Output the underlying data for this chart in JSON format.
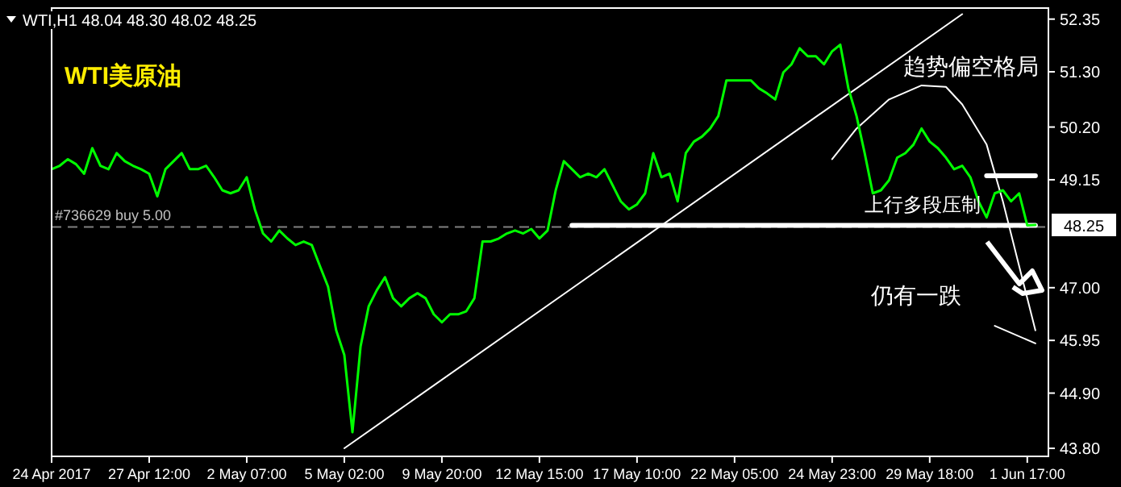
{
  "chart_data": {
    "type": "line",
    "title": "WTI,H1 48.04 48.30 48.02 48.25",
    "annotations": [
      "WTI美原油",
      "趋势偏空格局",
      "上行多段压制",
      "仍有一跌",
      {
        "text": "48.25",
        "y": 48.25
      }
    ],
    "categories": [
      "24 Apr 2017",
      null,
      null,
      null,
      null,
      null,
      null,
      null,
      null,
      null,
      null,
      null,
      "27 Apr 12:00",
      null,
      null,
      null,
      null,
      null,
      null,
      null,
      null,
      null,
      null,
      null,
      "2 May 07:00",
      null,
      null,
      null,
      null,
      null,
      null,
      null,
      null,
      null,
      null,
      null,
      "5 May 02:00",
      null,
      null,
      null,
      null,
      null,
      null,
      null,
      null,
      null,
      null,
      null,
      "9 May 20:00",
      null,
      null,
      null,
      null,
      null,
      null,
      null,
      null,
      null,
      null,
      null,
      "12 May 15:00",
      null,
      null,
      null,
      null,
      null,
      null,
      null,
      null,
      null,
      null,
      null,
      "17 May 10:00",
      null,
      null,
      null,
      null,
      null,
      null,
      null,
      null,
      null,
      null,
      null,
      "22 May 05:00",
      null,
      null,
      null,
      null,
      null,
      null,
      null,
      null,
      null,
      null,
      null,
      "24 May 23:00",
      null,
      null,
      null,
      null,
      null,
      null,
      null,
      null,
      null,
      null,
      null,
      "29 May 18:00",
      null,
      null,
      null,
      null,
      null,
      null,
      null,
      null,
      null,
      null,
      null,
      "1 Jun 17:00",
      null
    ],
    "ylim": [
      43.64,
      52.57
    ],
    "yticks": [
      {
        "value": 52.35,
        "label": "52.35"
      },
      {
        "value": 51.3,
        "label": "51.30"
      },
      {
        "value": 50.2,
        "label": "50.20"
      },
      {
        "value": 49.15,
        "label": "49.15"
      },
      {
        "value": 47,
        "label": "47.00"
      },
      {
        "value": 45.95,
        "label": "45.95"
      },
      {
        "value": 44.9,
        "label": "44.90"
      },
      {
        "value": 43.8,
        "label": "43.80"
      }
    ],
    "ref_lines": [
      {
        "axis": "y",
        "value": 48.21,
        "label": "#736629 buy 5.00",
        "color": "#808080",
        "line_style": "dashed"
      }
    ],
    "series": [
      {
        "color": "#00ff00",
        "values": [
          49.36,
          49.43,
          49.56,
          49.46,
          49.27,
          49.78,
          49.43,
          49.36,
          49.68,
          49.52,
          49.43,
          49.36,
          49.27,
          48.82,
          49.36,
          49.52,
          49.68,
          49.36,
          49.36,
          49.43,
          49.2,
          48.94,
          48.88,
          48.94,
          49.2,
          48.56,
          48.08,
          47.92,
          48.14,
          47.98,
          47.85,
          47.92,
          47.85,
          47.43,
          47.02,
          46.15,
          45.66,
          44.12,
          45.83,
          46.63,
          46.95,
          47.21,
          46.79,
          46.63,
          46.79,
          46.89,
          46.79,
          46.47,
          46.31,
          46.47,
          46.47,
          46.53,
          46.79,
          47.92,
          47.92,
          47.98,
          48.08,
          48.14,
          48.08,
          48.17,
          47.98,
          48.14,
          48.94,
          49.52,
          49.36,
          49.2,
          49.27,
          49.2,
          49.36,
          49.04,
          48.72,
          48.56,
          48.66,
          48.88,
          49.68,
          49.2,
          49.27,
          48.72,
          49.68,
          49.91,
          50.01,
          50.17,
          50.42,
          51.13,
          51.13,
          51.13,
          51.13,
          50.97,
          50.87,
          50.75,
          51.29,
          51.45,
          51.77,
          51.61,
          51.61,
          51.45,
          51.71,
          51.84,
          50.97,
          50.42,
          49.68,
          48.88,
          48.94,
          49.14,
          49.59,
          49.68,
          49.85,
          50.17,
          49.91,
          49.78,
          49.59,
          49.36,
          49.43,
          49.2,
          48.72,
          48.4,
          48.88,
          48.94,
          48.72,
          48.88,
          48.24,
          48.25
        ]
      },
      {
        "color": "#ffffff",
        "values": [
          null,
          null,
          null,
          null,
          null,
          null,
          null,
          null,
          null,
          null,
          null,
          null,
          null,
          null,
          null,
          null,
          null,
          null,
          null,
          null,
          null,
          null,
          null,
          null,
          null,
          null,
          null,
          null,
          null,
          null,
          null,
          null,
          null,
          null,
          null,
          null,
          43.8,
          null,
          null,
          null,
          null,
          null,
          null,
          null,
          null,
          null,
          null,
          null,
          null,
          null,
          null,
          null,
          null,
          null,
          null,
          null,
          null,
          null,
          null,
          null,
          null,
          null,
          null,
          null,
          null,
          null,
          null,
          null,
          null,
          null,
          null,
          null,
          null,
          null,
          null,
          null,
          null,
          null,
          null,
          null,
          null,
          null,
          null,
          null,
          null,
          null,
          null,
          null,
          null,
          null,
          null,
          null,
          null,
          null,
          null,
          null,
          null,
          null,
          null,
          null,
          null,
          null,
          null,
          null,
          null,
          null,
          null,
          null,
          null,
          null,
          null,
          null,
          52.45,
          null,
          null,
          null,
          null,
          null,
          null,
          null,
          null,
          null
        ]
      },
      {
        "color": "#ffffff",
        "values": [
          null,
          null,
          null,
          null,
          null,
          null,
          null,
          null,
          null,
          null,
          null,
          null,
          null,
          null,
          null,
          null,
          null,
          null,
          null,
          null,
          null,
          null,
          null,
          null,
          null,
          null,
          null,
          null,
          null,
          null,
          null,
          null,
          null,
          null,
          null,
          null,
          null,
          null,
          null,
          null,
          null,
          null,
          null,
          null,
          null,
          null,
          null,
          null,
          null,
          null,
          null,
          null,
          null,
          null,
          null,
          null,
          null,
          null,
          null,
          null,
          null,
          null,
          null,
          null,
          48.24,
          null,
          null,
          null,
          null,
          null,
          null,
          null,
          null,
          null,
          null,
          null,
          null,
          null,
          null,
          null,
          null,
          null,
          null,
          null,
          null,
          null,
          null,
          null,
          null,
          null,
          null,
          null,
          null,
          null,
          null,
          null,
          null,
          null,
          null,
          null,
          null,
          null,
          null,
          null,
          null,
          null,
          null,
          null,
          null,
          null,
          null,
          null,
          null,
          null,
          null,
          null,
          null,
          null,
          null,
          null,
          null,
          48.24
        ]
      },
      {
        "color": "#ffffff",
        "values": [
          null,
          null,
          null,
          null,
          null,
          null,
          null,
          null,
          null,
          null,
          null,
          null,
          null,
          null,
          null,
          null,
          null,
          null,
          null,
          null,
          null,
          null,
          null,
          null,
          null,
          null,
          null,
          null,
          null,
          null,
          null,
          null,
          null,
          null,
          null,
          null,
          null,
          null,
          null,
          null,
          null,
          null,
          null,
          null,
          null,
          null,
          null,
          null,
          null,
          null,
          null,
          null,
          null,
          null,
          null,
          null,
          null,
          null,
          null,
          null,
          null,
          null,
          null,
          null,
          null,
          null,
          null,
          null,
          null,
          null,
          null,
          null,
          null,
          null,
          null,
          null,
          null,
          null,
          null,
          null,
          null,
          null,
          null,
          null,
          null,
          null,
          null,
          null,
          null,
          null,
          null,
          null,
          null,
          null,
          null,
          null,
          null,
          null,
          null,
          null,
          null,
          null,
          null,
          null,
          null,
          null,
          null,
          null,
          null,
          null,
          null,
          null,
          null,
          null,
          null,
          49.23,
          null,
          null,
          null,
          null,
          null,
          49.23
        ]
      },
      {
        "color": "#ffffff",
        "values": [
          null,
          null,
          null,
          null,
          null,
          null,
          null,
          null,
          null,
          null,
          null,
          null,
          null,
          null,
          null,
          null,
          null,
          null,
          null,
          null,
          null,
          null,
          null,
          null,
          null,
          null,
          null,
          null,
          null,
          null,
          null,
          null,
          null,
          null,
          null,
          null,
          null,
          null,
          null,
          null,
          null,
          null,
          null,
          null,
          null,
          null,
          null,
          null,
          null,
          null,
          null,
          null,
          null,
          null,
          null,
          null,
          null,
          null,
          null,
          null,
          null,
          null,
          null,
          null,
          null,
          null,
          null,
          null,
          null,
          null,
          null,
          null,
          null,
          null,
          null,
          null,
          null,
          null,
          null,
          null,
          null,
          null,
          null,
          null,
          null,
          null,
          null,
          null,
          null,
          null,
          null,
          null,
          null,
          null,
          null,
          null,
          49.56,
          null,
          null,
          50.17,
          null,
          null,
          null,
          50.75,
          null,
          null,
          null,
          51.03,
          null,
          null,
          51.0,
          null,
          50.65,
          null,
          null,
          49.85,
          null,
          48.72,
          null,
          47.43,
          null,
          46.15
        ]
      },
      {
        "color": "#ffffff",
        "values": [
          null,
          null,
          null,
          null,
          null,
          null,
          null,
          null,
          null,
          null,
          null,
          null,
          null,
          null,
          null,
          null,
          null,
          null,
          null,
          null,
          null,
          null,
          null,
          null,
          null,
          null,
          null,
          null,
          null,
          null,
          null,
          null,
          null,
          null,
          null,
          null,
          null,
          null,
          null,
          null,
          null,
          null,
          null,
          null,
          null,
          null,
          null,
          null,
          null,
          null,
          null,
          null,
          null,
          null,
          null,
          null,
          null,
          null,
          null,
          null,
          null,
          null,
          null,
          null,
          null,
          null,
          null,
          null,
          null,
          null,
          null,
          null,
          null,
          null,
          null,
          null,
          null,
          null,
          null,
          null,
          null,
          null,
          null,
          null,
          null,
          null,
          null,
          null,
          null,
          null,
          null,
          null,
          null,
          null,
          null,
          null,
          null,
          null,
          null,
          null,
          null,
          null,
          null,
          null,
          null,
          null,
          null,
          null,
          null,
          null,
          null,
          null,
          null,
          null,
          null,
          null,
          46.24,
          null,
          null,
          null,
          null,
          45.89
        ]
      }
    ]
  }
}
